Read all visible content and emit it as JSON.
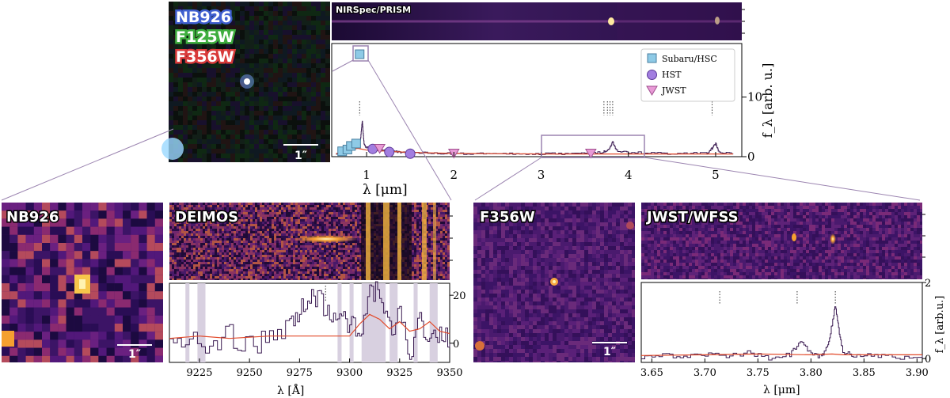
{
  "colors": {
    "subaru": "#8ecae6",
    "hst": "#a27ee0",
    "jwst": "#e89ad6",
    "model": "#e24a2a",
    "spectrum": "#3b1b52",
    "frame": "#9b84b0",
    "blue_label": "#3f5fd0",
    "green_label": "#3fae3f",
    "red_label": "#d93a3a"
  },
  "rgb_labels": [
    "NB926",
    "F125W",
    "F356W"
  ],
  "scale_bar": "1″",
  "panels": {
    "prism": {
      "title": "NIRSpec/PRISM"
    },
    "nb926": {
      "title": "NB926"
    },
    "deimos": {
      "title": "DEIMOS"
    },
    "f356w": {
      "title": "F356W"
    },
    "wfss": {
      "title": "JWST/WFSS"
    }
  },
  "chart_data": [
    {
      "name": "sed",
      "type": "line+scatter",
      "xlabel": "λ [μm]",
      "ylabel": "f_λ [arb. u.]",
      "xlim": [
        0.6,
        5.3
      ],
      "ylim": [
        0,
        19
      ],
      "xticks": [
        1,
        2,
        3,
        4,
        5
      ],
      "yticks": [
        0,
        10
      ],
      "legend_position": "top-right",
      "legend": [
        "Subaru/HSC",
        "HST",
        "JWST"
      ],
      "series": [
        {
          "name": "Subaru/HSC",
          "marker": "square",
          "x": [
            0.72,
            0.78,
            0.82,
            0.88
          ],
          "y": [
            0.9,
            1.2,
            1.8,
            2.2
          ]
        },
        {
          "name": "HST",
          "marker": "circle",
          "x": [
            1.07,
            1.26,
            1.5
          ],
          "y": [
            1.3,
            0.8,
            0.5
          ]
        },
        {
          "name": "JWST",
          "marker": "triangle-down",
          "x": [
            1.15,
            2.0,
            3.57
          ],
          "y": [
            1.4,
            0.6,
            0.6
          ]
        },
        {
          "name": "Subaru/HSC (inset)",
          "marker": "square",
          "x": [
            0.92
          ],
          "y": [
            17.2
          ]
        }
      ],
      "spectrum": {
        "x": [
          0.65,
          0.7,
          0.75,
          0.8,
          0.85,
          0.9,
          0.93,
          0.95,
          0.97,
          1.0,
          1.1,
          1.2,
          1.3,
          1.4,
          1.5,
          1.7,
          2.0,
          2.3,
          2.6,
          2.9,
          3.2,
          3.5,
          3.7,
          3.78,
          3.82,
          3.86,
          4.0,
          4.3,
          4.6,
          4.9,
          4.96,
          5.0,
          5.04,
          5.2
        ],
        "y": [
          0.3,
          0.6,
          1.0,
          1.4,
          1.9,
          2.0,
          3.0,
          6.0,
          2.0,
          1.5,
          1.2,
          1.0,
          0.9,
          0.8,
          0.7,
          0.6,
          0.5,
          0.5,
          0.45,
          0.45,
          0.5,
          0.55,
          0.8,
          1.2,
          2.6,
          1.0,
          0.7,
          0.6,
          0.5,
          0.6,
          1.4,
          2.2,
          0.7,
          0.5
        ]
      },
      "model": {
        "x": [
          0.65,
          0.8,
          0.9,
          1.0,
          1.5,
          2.0,
          3.0,
          4.0,
          5.0,
          5.2
        ],
        "y": [
          0.5,
          1.2,
          1.4,
          1.1,
          0.7,
          0.55,
          0.45,
          0.45,
          0.45,
          0.45
        ]
      },
      "line_markers_x": [
        0.92,
        3.72,
        3.76,
        3.79,
        3.82,
        4.96
      ]
    },
    {
      "name": "deimos",
      "type": "line",
      "xlabel": "λ [Å]",
      "xlim": [
        9210,
        9350
      ],
      "ylim": [
        -8,
        25
      ],
      "xticks": [
        9225,
        9250,
        9275,
        9300,
        9325,
        9350
      ],
      "yticks": [
        0,
        20
      ],
      "line_marker_x": 9288,
      "masked_regions": [
        [
          9218,
          9220
        ],
        [
          9224,
          9228
        ],
        [
          9294,
          9296
        ],
        [
          9300,
          9302
        ],
        [
          9306,
          9318
        ],
        [
          9320,
          9324
        ],
        [
          9332,
          9334
        ],
        [
          9340,
          9344
        ]
      ],
      "spectrum": {
        "x": [
          9210,
          9220,
          9230,
          9240,
          9250,
          9260,
          9270,
          9275,
          9280,
          9285,
          9290,
          9295,
          9300,
          9305,
          9310,
          9315,
          9320,
          9325,
          9330,
          9335,
          9340,
          9345,
          9350
        ],
        "y": [
          0,
          2,
          -3,
          4,
          -2,
          3,
          6,
          14,
          18,
          20,
          10,
          14,
          8,
          2,
          22,
          20,
          5,
          12,
          -4,
          10,
          2,
          6,
          0
        ]
      },
      "model": {
        "x": [
          9210,
          9225,
          9240,
          9260,
          9280,
          9300,
          9305,
          9310,
          9315,
          9320,
          9325,
          9330,
          9335,
          9340,
          9345,
          9350
        ],
        "y": [
          2,
          3,
          2,
          3,
          3,
          3,
          8,
          12,
          10,
          6,
          9,
          5,
          6,
          9,
          5,
          4
        ]
      }
    },
    {
      "name": "wfss",
      "type": "line",
      "xlabel": "λ [μm]",
      "ylabel": "f_λ [arb.u.]",
      "xlim": [
        3.64,
        3.905
      ],
      "ylim": [
        -0.1,
        2.0
      ],
      "xticks": [
        3.65,
        3.7,
        3.75,
        3.8,
        3.85,
        3.9
      ],
      "yticks": [
        0,
        2
      ],
      "line_markers_x": [
        3.714,
        3.787,
        3.823
      ],
      "spectrum": {
        "x": [
          3.64,
          3.66,
          3.68,
          3.7,
          3.72,
          3.74,
          3.76,
          3.78,
          3.79,
          3.8,
          3.81,
          3.815,
          3.82,
          3.823,
          3.826,
          3.83,
          3.84,
          3.86,
          3.88,
          3.905
        ],
        "y": [
          0.05,
          0.1,
          0.02,
          0.12,
          0.05,
          0.15,
          0.0,
          0.1,
          0.45,
          0.1,
          0.05,
          0.3,
          0.9,
          1.4,
          0.8,
          0.2,
          0.05,
          0.1,
          0.02,
          0.08
        ]
      },
      "model": {
        "x": [
          3.64,
          3.7,
          3.75,
          3.8,
          3.82,
          3.83,
          3.9,
          3.905
        ],
        "y": [
          0.08,
          0.1,
          0.12,
          0.1,
          0.12,
          0.1,
          0.1,
          0.1
        ]
      }
    }
  ]
}
